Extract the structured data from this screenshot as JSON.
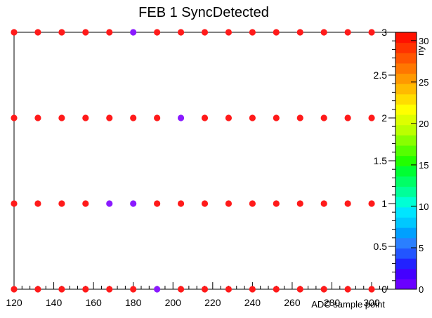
{
  "chart_data": {
    "type": "scatter",
    "title": "FEB 1 SyncDetected",
    "xlabel": "ADC sample point",
    "ylabel": "",
    "zlabel": "ny",
    "xlim": [
      120,
      312
    ],
    "ylim": [
      0,
      3
    ],
    "zlim": [
      0,
      31
    ],
    "x_ticks": [
      120,
      140,
      160,
      180,
      200,
      220,
      240,
      260,
      280,
      300
    ],
    "y_ticks": [
      0,
      0.5,
      1,
      1.5,
      2,
      2.5,
      3
    ],
    "z_ticks": [
      0,
      5,
      10,
      15,
      20,
      25,
      30
    ],
    "grid": false,
    "colorbar_position": "right",
    "x_values": [
      120,
      132,
      144,
      156,
      168,
      180,
      192,
      204,
      216,
      228,
      240,
      252,
      264,
      276,
      288,
      300
    ],
    "points_z": {
      "y0": [
        31,
        31,
        31,
        31,
        31,
        31,
        1,
        31,
        31,
        31,
        31,
        31,
        31,
        31,
        31,
        31
      ],
      "y1": [
        31,
        31,
        31,
        31,
        1,
        1,
        31,
        31,
        31,
        31,
        31,
        31,
        31,
        31,
        31,
        31
      ],
      "y2": [
        31,
        31,
        31,
        31,
        31,
        31,
        31,
        1,
        31,
        31,
        31,
        31,
        31,
        31,
        31,
        31
      ],
      "y3": [
        31,
        31,
        31,
        31,
        31,
        1,
        31,
        31,
        31,
        31,
        31,
        31,
        31,
        31,
        31,
        31
      ]
    },
    "palette": [
      "#6a00ff",
      "#4400ff",
      "#2222ff",
      "#2255ff",
      "#2a7fff",
      "#00a0ff",
      "#00c8ff",
      "#00e5ff",
      "#00ffd5",
      "#00ff99",
      "#00ff66",
      "#00ff33",
      "#22ff00",
      "#55ff00",
      "#88ff00",
      "#bbff00",
      "#ddff00",
      "#ffff00",
      "#ffdd00",
      "#ffbb00",
      "#ff9900",
      "#ff7700",
      "#ff5500",
      "#ff3300",
      "#ff1100"
    ],
    "point_colors": {
      "high": "#ff1a1a",
      "low": "#8a1aff"
    }
  }
}
